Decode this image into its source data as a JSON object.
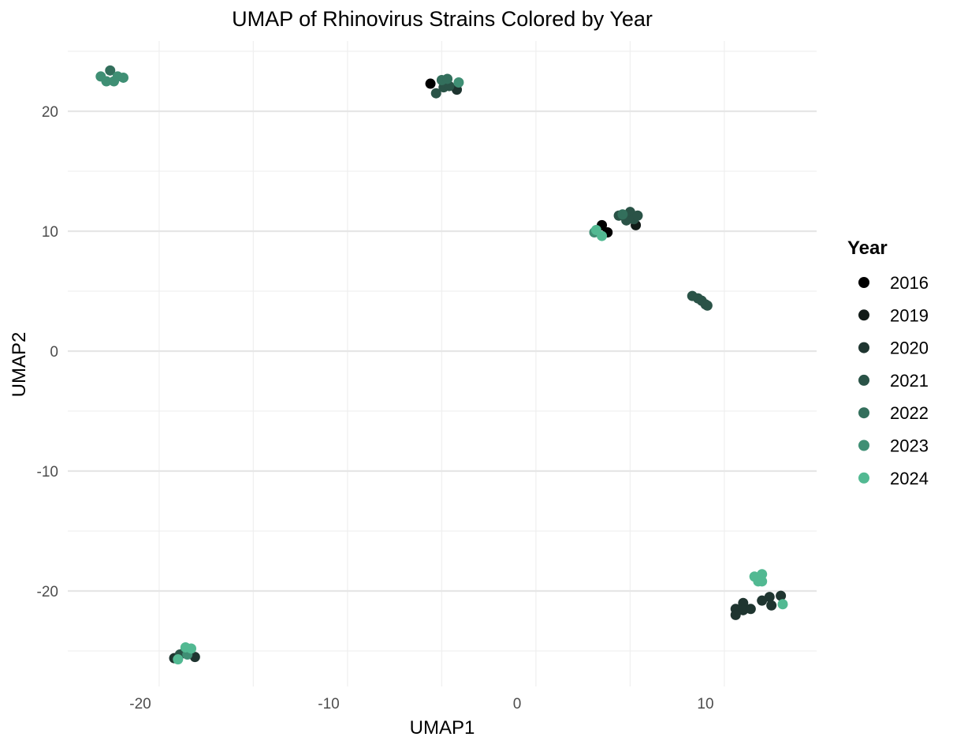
{
  "chart_data": {
    "type": "scatter",
    "title": "UMAP of Rhinovirus Strains Colored by Year",
    "xlabel": "UMAP1",
    "ylabel": "UMAP2",
    "xlim": [
      -24,
      16
    ],
    "ylim": [
      -28,
      26
    ],
    "x_ticks": [
      -20,
      -10,
      0,
      10
    ],
    "y_ticks": [
      -20,
      -10,
      0,
      10,
      20
    ],
    "grid": true,
    "legend": {
      "title": "Year",
      "placement": "right"
    },
    "series": [
      {
        "name": "2016",
        "color": "#000000",
        "points": [
          [
            -4.6,
            22.3
          ],
          [
            4.5,
            10.5
          ],
          [
            4.8,
            9.9
          ]
        ]
      },
      {
        "name": "2019",
        "color": "#111a17",
        "points": [
          [
            6.3,
            10.5
          ]
        ]
      },
      {
        "name": "2020",
        "color": "#1f3530",
        "points": [
          [
            -3.2,
            21.8
          ],
          [
            11.6,
            -21.5
          ],
          [
            11.6,
            -22.0
          ],
          [
            12.0,
            -21.0
          ],
          [
            12.0,
            -21.6
          ],
          [
            12.4,
            -21.5
          ],
          [
            13.0,
            -20.8
          ],
          [
            13.4,
            -20.5
          ],
          [
            13.5,
            -21.2
          ],
          [
            14.0,
            -20.4
          ],
          [
            -18.2,
            -25.6
          ],
          [
            -17.1,
            -25.5
          ]
        ]
      },
      {
        "name": "2021",
        "color": "#2a5347",
        "points": [
          [
            -4.3,
            21.5
          ],
          [
            -3.9,
            22.0
          ],
          [
            -3.6,
            22.1
          ],
          [
            5.4,
            11.3
          ],
          [
            5.8,
            10.9
          ],
          [
            6.0,
            11.6
          ],
          [
            6.2,
            11.0
          ],
          [
            6.4,
            11.3
          ],
          [
            9.3,
            4.6
          ],
          [
            9.6,
            4.4
          ],
          [
            9.8,
            4.2
          ],
          [
            10.0,
            3.9
          ],
          [
            10.1,
            3.8
          ],
          [
            -17.9,
            -25.3
          ],
          [
            -17.6,
            -24.9
          ]
        ]
      },
      {
        "name": "2022",
        "color": "#336f5c",
        "points": [
          [
            -4.0,
            22.6
          ],
          [
            -3.7,
            22.7
          ],
          [
            5.6,
            11.4
          ],
          [
            -21.6,
            23.4
          ]
        ]
      },
      {
        "name": "2023",
        "color": "#3f8f74",
        "points": [
          [
            -3.1,
            22.4
          ],
          [
            4.1,
            9.9
          ],
          [
            -22.1,
            22.9
          ],
          [
            -21.8,
            22.5
          ],
          [
            -21.4,
            22.5
          ],
          [
            -21.2,
            22.9
          ],
          [
            -20.9,
            22.8
          ],
          [
            -17.5,
            -25.3
          ]
        ]
      },
      {
        "name": "2024",
        "color": "#52b992",
        "points": [
          [
            4.2,
            10.1
          ],
          [
            4.5,
            9.6
          ],
          [
            12.6,
            -18.8
          ],
          [
            12.8,
            -19.2
          ],
          [
            13.0,
            -18.6
          ],
          [
            13.0,
            -19.2
          ],
          [
            14.1,
            -21.1
          ],
          [
            -18.0,
            -25.7
          ],
          [
            -17.6,
            -24.7
          ],
          [
            -17.3,
            -24.8
          ]
        ]
      }
    ]
  }
}
